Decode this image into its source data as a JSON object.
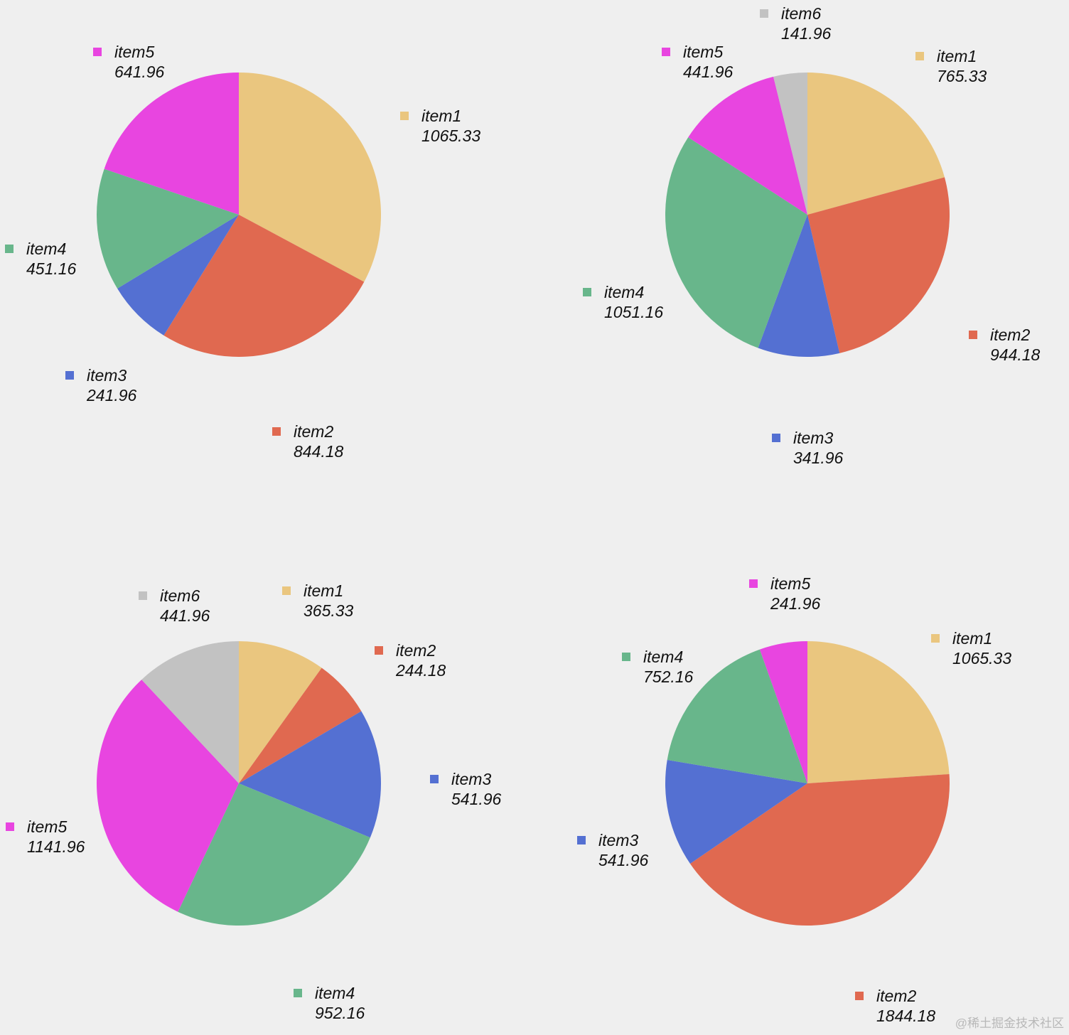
{
  "colors": {
    "item1": "#eac67f",
    "item2": "#e06950",
    "item3": "#5470d2",
    "item4": "#68b68b",
    "item5": "#e845e0",
    "item6": "#c2c2c2"
  },
  "chart_data": [
    {
      "type": "pie",
      "categories": [
        "item1",
        "item2",
        "item3",
        "item4",
        "item5"
      ],
      "values": [
        1065.33,
        844.18,
        241.96,
        451.16,
        641.96
      ],
      "labels": [
        "1065.33",
        "844.18",
        "241.96",
        "451.16",
        "641.96"
      ]
    },
    {
      "type": "pie",
      "categories": [
        "item1",
        "item2",
        "item3",
        "item4",
        "item5",
        "item6"
      ],
      "values": [
        765.33,
        944.18,
        341.96,
        1051.16,
        441.96,
        141.96
      ],
      "labels": [
        "765.33",
        "944.18",
        "341.96",
        "1051.16",
        "441.96",
        "141.96"
      ]
    },
    {
      "type": "pie",
      "categories": [
        "item1",
        "item2",
        "item3",
        "item4",
        "item5",
        "item6"
      ],
      "values": [
        365.33,
        244.18,
        541.96,
        952.16,
        1141.96,
        441.96
      ],
      "labels": [
        "365.33",
        "244.18",
        "541.96",
        "952.16",
        "1141.96",
        "441.96"
      ]
    },
    {
      "type": "pie",
      "categories": [
        "item1",
        "item2",
        "item3",
        "item4",
        "item5"
      ],
      "values": [
        1065.33,
        1844.18,
        541.96,
        752.16,
        241.96
      ],
      "labels": [
        "1065.33",
        "1844.18",
        "541.96",
        "752.16",
        "241.96"
      ]
    }
  ],
  "watermark": "@稀土掘金技术社区"
}
